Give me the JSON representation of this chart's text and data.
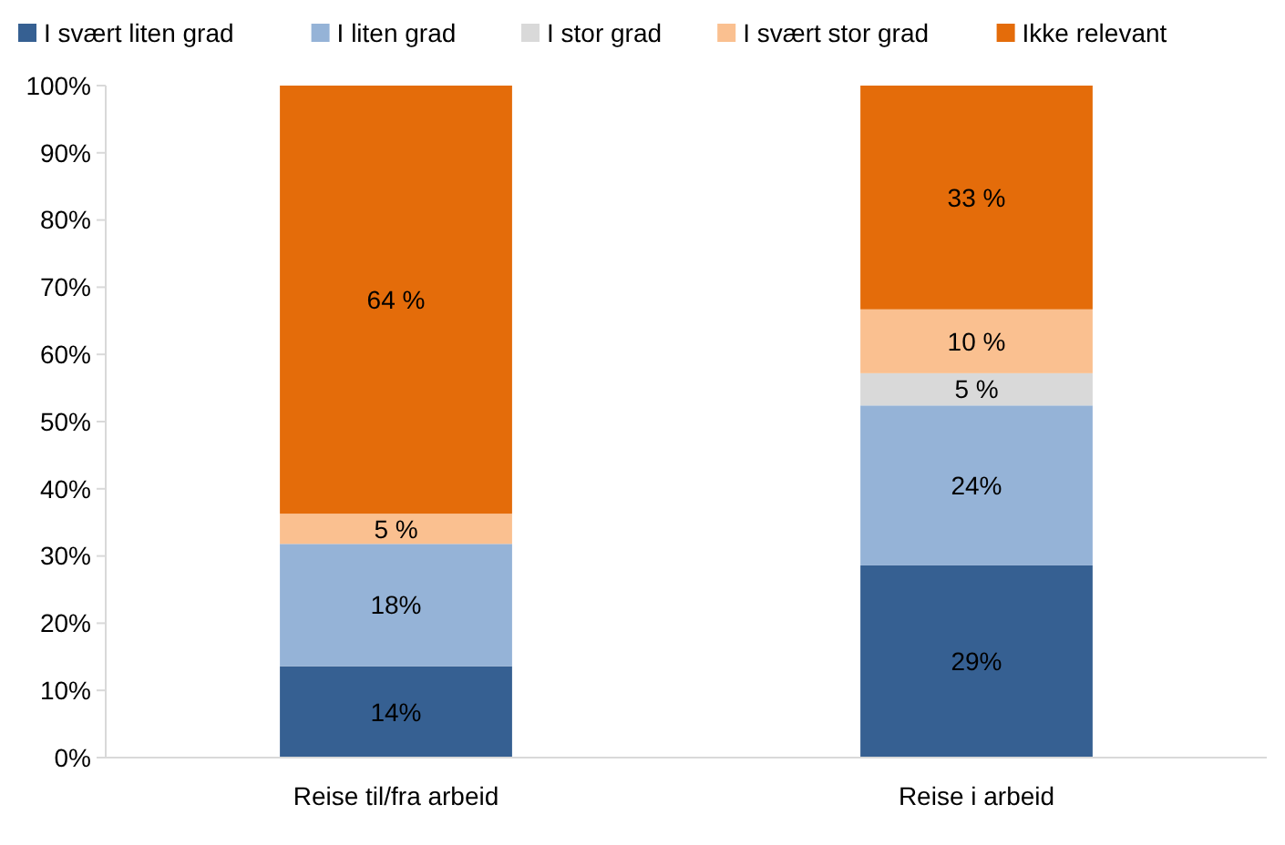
{
  "chart_data": {
    "type": "bar",
    "stacked": true,
    "categories": [
      "Reise til/fra arbeid",
      "Reise i arbeid"
    ],
    "series": [
      {
        "name": "I svært liten grad",
        "color": "#366092",
        "values": [
          13.6,
          28.6
        ],
        "value_labels": [
          "14%",
          "29%"
        ]
      },
      {
        "name": "I liten grad",
        "color": "#95b3d7",
        "values": [
          18.2,
          23.8
        ],
        "value_labels": [
          "18%",
          "24%"
        ]
      },
      {
        "name": "I stor grad",
        "color": "#d9d9d9",
        "values": [
          0,
          4.8
        ],
        "value_labels": [
          null,
          "5 %"
        ]
      },
      {
        "name": "I svært stor grad",
        "color": "#fac090",
        "values": [
          4.5,
          9.5
        ],
        "value_labels": [
          "5 %",
          "10 %"
        ]
      },
      {
        "name": "Ikke relevant",
        "color": "#e46c0a",
        "values": [
          63.7,
          33.3
        ],
        "value_labels": [
          "64 %",
          "33 %"
        ]
      }
    ],
    "ylim": [
      0,
      100
    ],
    "yticks": [
      {
        "value": 0,
        "label": "0%"
      },
      {
        "value": 10,
        "label": "10%"
      },
      {
        "value": 20,
        "label": "20%"
      },
      {
        "value": 30,
        "label": "30%"
      },
      {
        "value": 40,
        "label": "40%"
      },
      {
        "value": 50,
        "label": "50%"
      },
      {
        "value": 60,
        "label": "60%"
      },
      {
        "value": 70,
        "label": "70%"
      },
      {
        "value": 80,
        "label": "80%"
      },
      {
        "value": 90,
        "label": "90%"
      },
      {
        "value": 100,
        "label": "100%"
      }
    ],
    "legend": "top"
  }
}
